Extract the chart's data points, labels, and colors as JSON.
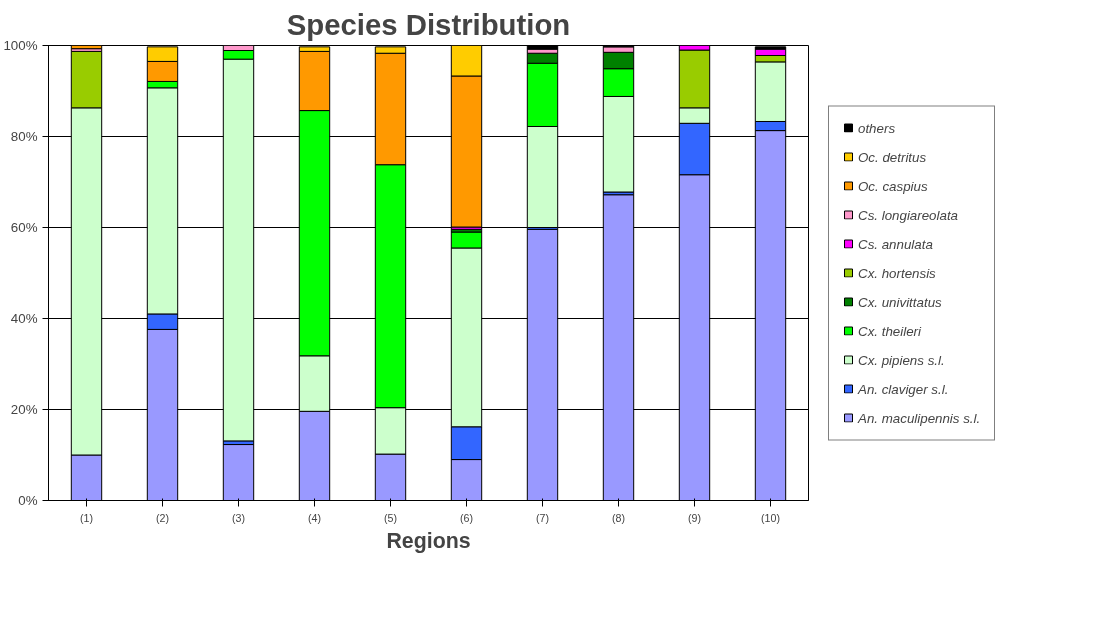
{
  "chart_data": {
    "type": "bar",
    "stacked": true,
    "title": "Species Distribution",
    "xlabel": "Regions",
    "categories": [
      "(1)",
      "(2)",
      "(3)",
      "(4)",
      "(5)",
      "(6)",
      "(7)",
      "(8)",
      "(9)",
      "(10)"
    ],
    "ylim": [
      0,
      100
    ],
    "yticks": [
      {
        "value": 0,
        "label": "0%"
      },
      {
        "value": 20,
        "label": "20%"
      },
      {
        "value": 40,
        "label": "40%"
      },
      {
        "value": 60,
        "label": "60%"
      },
      {
        "value": 80,
        "label": "80%"
      },
      {
        "value": 100,
        "label": "100%"
      }
    ],
    "grid": "y",
    "legend": "right",
    "series": [
      {
        "name": "An. maculipennis s.l.",
        "color": "#9999ff",
        "values": [
          10,
          37.6,
          12.3,
          19.6,
          10.2,
          9,
          59.6,
          67.2,
          71.6,
          81.3
        ]
      },
      {
        "name": "An. claviger s.l.",
        "color": "#3366ff",
        "values": [
          0,
          3.4,
          0.8,
          0,
          0,
          7.2,
          0.4,
          0.6,
          11.3,
          2
        ]
      },
      {
        "name": "Cx. pipiens s.l.",
        "color": "#ccffcc",
        "values": [
          76.3,
          49.7,
          83.9,
          12.2,
          10.2,
          39.3,
          22.2,
          21,
          3.4,
          13.1
        ]
      },
      {
        "name": "Cx. theileri",
        "color": "#00ff00",
        "values": [
          0,
          1.4,
          1.9,
          53.9,
          53.4,
          3.5,
          13.9,
          6.1,
          0,
          null
        ]
      },
      {
        "name": "Cx. univittatus",
        "color": "#008000",
        "values": [
          0,
          null,
          0,
          null,
          null,
          0.6,
          2.2,
          3.6,
          0,
          0
        ]
      },
      {
        "name": "Cx. hortensis",
        "color": "#99cc00",
        "values": [
          12.4,
          0,
          0,
          0,
          0,
          0,
          0,
          0,
          12.7,
          1.4
        ]
      },
      {
        "name": "Cs. annulata",
        "color": "#ff00ff",
        "values": [
          0,
          0,
          0,
          0,
          0,
          0.5,
          0,
          0,
          1,
          1.4
        ]
      },
      {
        "name": "Cs. longiareolata",
        "color": "#ff99cc",
        "values": [
          0.6,
          0,
          1.1,
          0,
          0,
          0,
          0.9,
          1.2,
          0,
          0
        ]
      },
      {
        "name": "Oc. caspius",
        "color": "#ff9900",
        "values": [
          0.7,
          4.4,
          0,
          13,
          24.5,
          33.2,
          0,
          0,
          0,
          0
        ]
      },
      {
        "name": "Oc. detritus",
        "color": "#ffcc00",
        "values": [
          0,
          3.2,
          0,
          1,
          1.4,
          6.7,
          0,
          0,
          0,
          0
        ]
      },
      {
        "name": "others",
        "color": "#000000",
        "values": [
          0,
          0,
          0,
          0,
          0,
          0,
          0.8,
          0.3,
          0,
          0.5
        ]
      }
    ]
  }
}
